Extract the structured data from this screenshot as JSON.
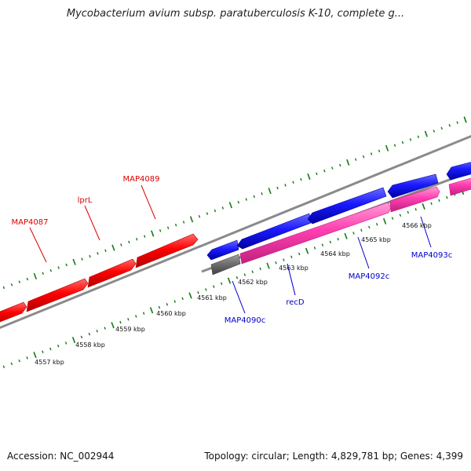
{
  "title": "Mycobacterium avium subsp. paratuberculosis K-10, complete g...",
  "footer": {
    "accession": "Accession: NC_002944",
    "summary": "Topology: circular; Length: 4,829,781 bp; Genes: 4,399"
  },
  "colors": {
    "forward_gene": "#ff0000",
    "reverse_gene_top": "#1a1aff",
    "reverse_gene_bottom": "#ff3fb0",
    "pseudo_gene": "#707070",
    "backbone": "#8a8a8a",
    "ticks": "#117a11",
    "forward_label": "#dd0000",
    "reverse_label": "#0000cc"
  },
  "scale_labels": [
    "4557 kbp",
    "4558 kbp",
    "4559 kbp",
    "4560 kbp",
    "4561 kbp",
    "4562 kbp",
    "4563 kbp",
    "4564 kbp",
    "4565 kbp",
    "4566 kbp"
  ],
  "gene_labels": {
    "forward": [
      "MAP4087",
      "lprL",
      "MAP4089"
    ],
    "reverse": [
      "MAP4090c",
      "recD",
      "MAP4092c",
      "MAP4093c"
    ]
  }
}
